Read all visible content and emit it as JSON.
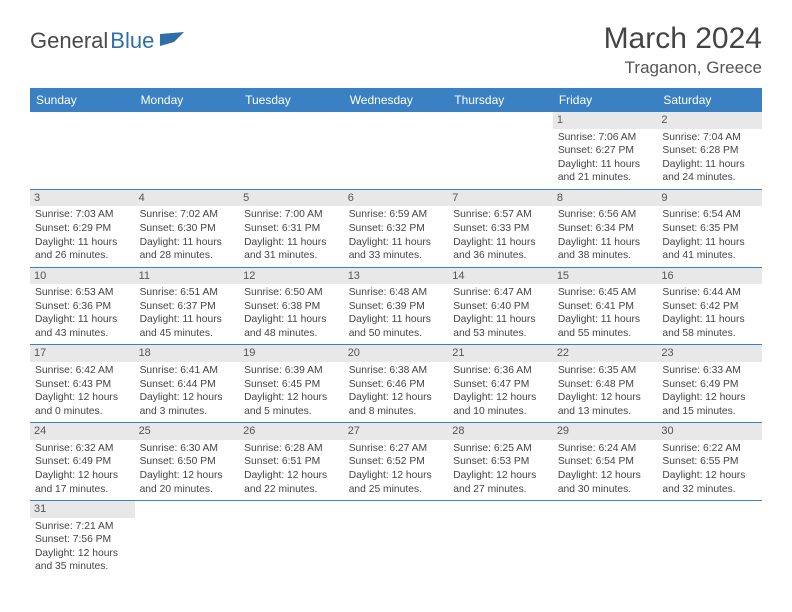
{
  "logo": {
    "part1": "General",
    "part2": "Blue"
  },
  "title": "March 2024",
  "location": "Traganon, Greece",
  "colors": {
    "header_bg": "#3a81c4",
    "header_fg": "#ffffff",
    "daynum_bg": "#e8e8e8",
    "border": "#3a81c4",
    "logo_blue": "#2f6fa8"
  },
  "day_headers": [
    "Sunday",
    "Monday",
    "Tuesday",
    "Wednesday",
    "Thursday",
    "Friday",
    "Saturday"
  ],
  "weeks": [
    [
      null,
      null,
      null,
      null,
      null,
      {
        "n": "1",
        "sr": "Sunrise: 7:06 AM",
        "ss": "Sunset: 6:27 PM",
        "dl": "Daylight: 11 hours and 21 minutes."
      },
      {
        "n": "2",
        "sr": "Sunrise: 7:04 AM",
        "ss": "Sunset: 6:28 PM",
        "dl": "Daylight: 11 hours and 24 minutes."
      }
    ],
    [
      {
        "n": "3",
        "sr": "Sunrise: 7:03 AM",
        "ss": "Sunset: 6:29 PM",
        "dl": "Daylight: 11 hours and 26 minutes."
      },
      {
        "n": "4",
        "sr": "Sunrise: 7:02 AM",
        "ss": "Sunset: 6:30 PM",
        "dl": "Daylight: 11 hours and 28 minutes."
      },
      {
        "n": "5",
        "sr": "Sunrise: 7:00 AM",
        "ss": "Sunset: 6:31 PM",
        "dl": "Daylight: 11 hours and 31 minutes."
      },
      {
        "n": "6",
        "sr": "Sunrise: 6:59 AM",
        "ss": "Sunset: 6:32 PM",
        "dl": "Daylight: 11 hours and 33 minutes."
      },
      {
        "n": "7",
        "sr": "Sunrise: 6:57 AM",
        "ss": "Sunset: 6:33 PM",
        "dl": "Daylight: 11 hours and 36 minutes."
      },
      {
        "n": "8",
        "sr": "Sunrise: 6:56 AM",
        "ss": "Sunset: 6:34 PM",
        "dl": "Daylight: 11 hours and 38 minutes."
      },
      {
        "n": "9",
        "sr": "Sunrise: 6:54 AM",
        "ss": "Sunset: 6:35 PM",
        "dl": "Daylight: 11 hours and 41 minutes."
      }
    ],
    [
      {
        "n": "10",
        "sr": "Sunrise: 6:53 AM",
        "ss": "Sunset: 6:36 PM",
        "dl": "Daylight: 11 hours and 43 minutes."
      },
      {
        "n": "11",
        "sr": "Sunrise: 6:51 AM",
        "ss": "Sunset: 6:37 PM",
        "dl": "Daylight: 11 hours and 45 minutes."
      },
      {
        "n": "12",
        "sr": "Sunrise: 6:50 AM",
        "ss": "Sunset: 6:38 PM",
        "dl": "Daylight: 11 hours and 48 minutes."
      },
      {
        "n": "13",
        "sr": "Sunrise: 6:48 AM",
        "ss": "Sunset: 6:39 PM",
        "dl": "Daylight: 11 hours and 50 minutes."
      },
      {
        "n": "14",
        "sr": "Sunrise: 6:47 AM",
        "ss": "Sunset: 6:40 PM",
        "dl": "Daylight: 11 hours and 53 minutes."
      },
      {
        "n": "15",
        "sr": "Sunrise: 6:45 AM",
        "ss": "Sunset: 6:41 PM",
        "dl": "Daylight: 11 hours and 55 minutes."
      },
      {
        "n": "16",
        "sr": "Sunrise: 6:44 AM",
        "ss": "Sunset: 6:42 PM",
        "dl": "Daylight: 11 hours and 58 minutes."
      }
    ],
    [
      {
        "n": "17",
        "sr": "Sunrise: 6:42 AM",
        "ss": "Sunset: 6:43 PM",
        "dl": "Daylight: 12 hours and 0 minutes."
      },
      {
        "n": "18",
        "sr": "Sunrise: 6:41 AM",
        "ss": "Sunset: 6:44 PM",
        "dl": "Daylight: 12 hours and 3 minutes."
      },
      {
        "n": "19",
        "sr": "Sunrise: 6:39 AM",
        "ss": "Sunset: 6:45 PM",
        "dl": "Daylight: 12 hours and 5 minutes."
      },
      {
        "n": "20",
        "sr": "Sunrise: 6:38 AM",
        "ss": "Sunset: 6:46 PM",
        "dl": "Daylight: 12 hours and 8 minutes."
      },
      {
        "n": "21",
        "sr": "Sunrise: 6:36 AM",
        "ss": "Sunset: 6:47 PM",
        "dl": "Daylight: 12 hours and 10 minutes."
      },
      {
        "n": "22",
        "sr": "Sunrise: 6:35 AM",
        "ss": "Sunset: 6:48 PM",
        "dl": "Daylight: 12 hours and 13 minutes."
      },
      {
        "n": "23",
        "sr": "Sunrise: 6:33 AM",
        "ss": "Sunset: 6:49 PM",
        "dl": "Daylight: 12 hours and 15 minutes."
      }
    ],
    [
      {
        "n": "24",
        "sr": "Sunrise: 6:32 AM",
        "ss": "Sunset: 6:49 PM",
        "dl": "Daylight: 12 hours and 17 minutes."
      },
      {
        "n": "25",
        "sr": "Sunrise: 6:30 AM",
        "ss": "Sunset: 6:50 PM",
        "dl": "Daylight: 12 hours and 20 minutes."
      },
      {
        "n": "26",
        "sr": "Sunrise: 6:28 AM",
        "ss": "Sunset: 6:51 PM",
        "dl": "Daylight: 12 hours and 22 minutes."
      },
      {
        "n": "27",
        "sr": "Sunrise: 6:27 AM",
        "ss": "Sunset: 6:52 PM",
        "dl": "Daylight: 12 hours and 25 minutes."
      },
      {
        "n": "28",
        "sr": "Sunrise: 6:25 AM",
        "ss": "Sunset: 6:53 PM",
        "dl": "Daylight: 12 hours and 27 minutes."
      },
      {
        "n": "29",
        "sr": "Sunrise: 6:24 AM",
        "ss": "Sunset: 6:54 PM",
        "dl": "Daylight: 12 hours and 30 minutes."
      },
      {
        "n": "30",
        "sr": "Sunrise: 6:22 AM",
        "ss": "Sunset: 6:55 PM",
        "dl": "Daylight: 12 hours and 32 minutes."
      }
    ],
    [
      {
        "n": "31",
        "sr": "Sunrise: 7:21 AM",
        "ss": "Sunset: 7:56 PM",
        "dl": "Daylight: 12 hours and 35 minutes."
      },
      null,
      null,
      null,
      null,
      null,
      null
    ]
  ]
}
